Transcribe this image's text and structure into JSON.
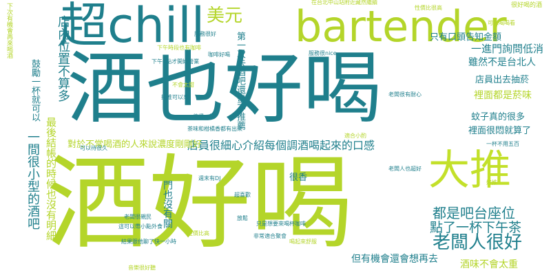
{
  "palette": {
    "teal": "#1f7f8c",
    "green": "#8fd14f",
    "lime": "#c3e02a",
    "yellow": "#b4d52a",
    "dark": "#2e6c8e"
  },
  "words": [
    {
      "text": "酒好喝",
      "color": "#b4d52a"
    },
    {
      "text": "酒也好喝",
      "color": "#1f7f8c"
    },
    {
      "text": "bartender",
      "color": "#b4d52a"
    },
    {
      "text": "超chill",
      "color": "#1f7f8c"
    },
    {
      "text": "大推",
      "color": "#c3e02a"
    },
    {
      "text": "美元",
      "color": "#b4d52a"
    },
    {
      "text": "只有口頭告知金額",
      "color": "#1f7f8c"
    },
    {
      "text": "老闆人很好",
      "color": "#1f7f8c"
    },
    {
      "text": "都是吧台座位",
      "color": "#1f7f8c"
    },
    {
      "text": "點了一杯下午茶",
      "color": "#1f7f8c"
    },
    {
      "text": "但有機會還會想再去",
      "color": "#1f7f8c"
    },
    {
      "text": "酒味不會太重",
      "color": "#b4d52a"
    },
    {
      "text": "店員很細心介紹每個調酒喝起來的口感",
      "color": "#1f7f8c"
    },
    {
      "text": "對於不常喝酒的人來說濃度剛剛好",
      "color": "#b4d52a"
    },
    {
      "text": "一進門詢問低消",
      "color": "#1f7f8c"
    },
    {
      "text": "雖然不是台北人",
      "color": "#1f7f8c"
    },
    {
      "text": "店員出去抽菸",
      "color": "#1f7f8c"
    },
    {
      "text": "裡面都是菸味",
      "color": "#b4d52a"
    },
    {
      "text": "蚊子真的很多",
      "color": "#1f7f8c"
    },
    {
      "text": "裡面很悶就算了",
      "color": "#1f7f8c"
    },
    {
      "text": "很香",
      "color": "#1f7f8c"
    },
    {
      "text": "一間很小型的酒吧",
      "color": "#1f7f8c"
    },
    {
      "text": "店內位置不算多",
      "color": "#1f7f8c"
    },
    {
      "text": "最後結帳的時候也沒有明細",
      "color": "#b4d52a"
    },
    {
      "text": "第一次去酒吧還蠻不推薦",
      "color": "#1f7f8c"
    },
    {
      "text": "鼓勵一杯就可以",
      "color": "#1f7f8c"
    },
    {
      "text": "下次有機會再來喝酒",
      "color": "#b4d52a"
    },
    {
      "text": "門也沒有關",
      "color": "#1f7f8c"
    },
    {
      "text": "在台北中山站附近藏然繼續",
      "color": "#b4d52a"
    },
    {
      "text": "很好喝的酒",
      "color": "#b4d52a"
    },
    {
      "text": "可以喝喝看",
      "color": "#b4d52a"
    },
    {
      "text": "服務很好",
      "color": "#1f7f8c"
    },
    {
      "text": "服務很nice",
      "color": "#1f7f8c"
    },
    {
      "text": "咖啡好喝",
      "color": "#1f7f8c"
    },
    {
      "text": "老闆很有耐心",
      "color": "#1f7f8c"
    },
    {
      "text": "推推可以來",
      "color": "#1f7f8c"
    },
    {
      "text": "一杯不用五百",
      "color": "#1f7f8c"
    },
    {
      "text": "老闆人也超好",
      "color": "#1f7f8c"
    },
    {
      "text": "好推",
      "color": "#b4d52a"
    },
    {
      "text": "週末有DJ",
      "color": "#1f7f8c"
    },
    {
      "text": "超喜歡",
      "color": "#1f7f8c"
    },
    {
      "text": "放鬆",
      "color": "#1f7f8c"
    },
    {
      "text": "老闆很親民",
      "color": "#1f7f8c"
    },
    {
      "text": "只是想要來喝杯咖啡",
      "color": "#1f7f8c"
    },
    {
      "text": "非常適合聚會",
      "color": "#1f7f8c"
    },
    {
      "text": "喝起來舒服",
      "color": "#b4d52a"
    },
    {
      "text": "音樂很好聽",
      "color": "#b4d52a"
    },
    {
      "text": "下午4點才開始營業",
      "color": "#1f7f8c"
    },
    {
      "text": "下午時段也有咖啡",
      "color": "#b4d52a"
    },
    {
      "text": "不會太甜",
      "color": "#b4d52a"
    },
    {
      "text": "茶味和柑橘香都有出來",
      "color": "#1f7f8c"
    },
    {
      "text": "適合小酌",
      "color": "#b4d52a"
    },
    {
      "text": "值得一試",
      "color": "#1f7f8c"
    },
    {
      "text": "結果跟他聊了快一小時",
      "color": "#1f7f8c"
    },
    {
      "text": "這可以帶小點外食",
      "color": "#1f7f8c"
    },
    {
      "text": "性價比高",
      "color": "#b4d52a"
    },
    {
      "text": "性價比很高",
      "color": "#b4d52a"
    },
    {
      "text": "可以待很久",
      "color": "#1f7f8c"
    }
  ]
}
